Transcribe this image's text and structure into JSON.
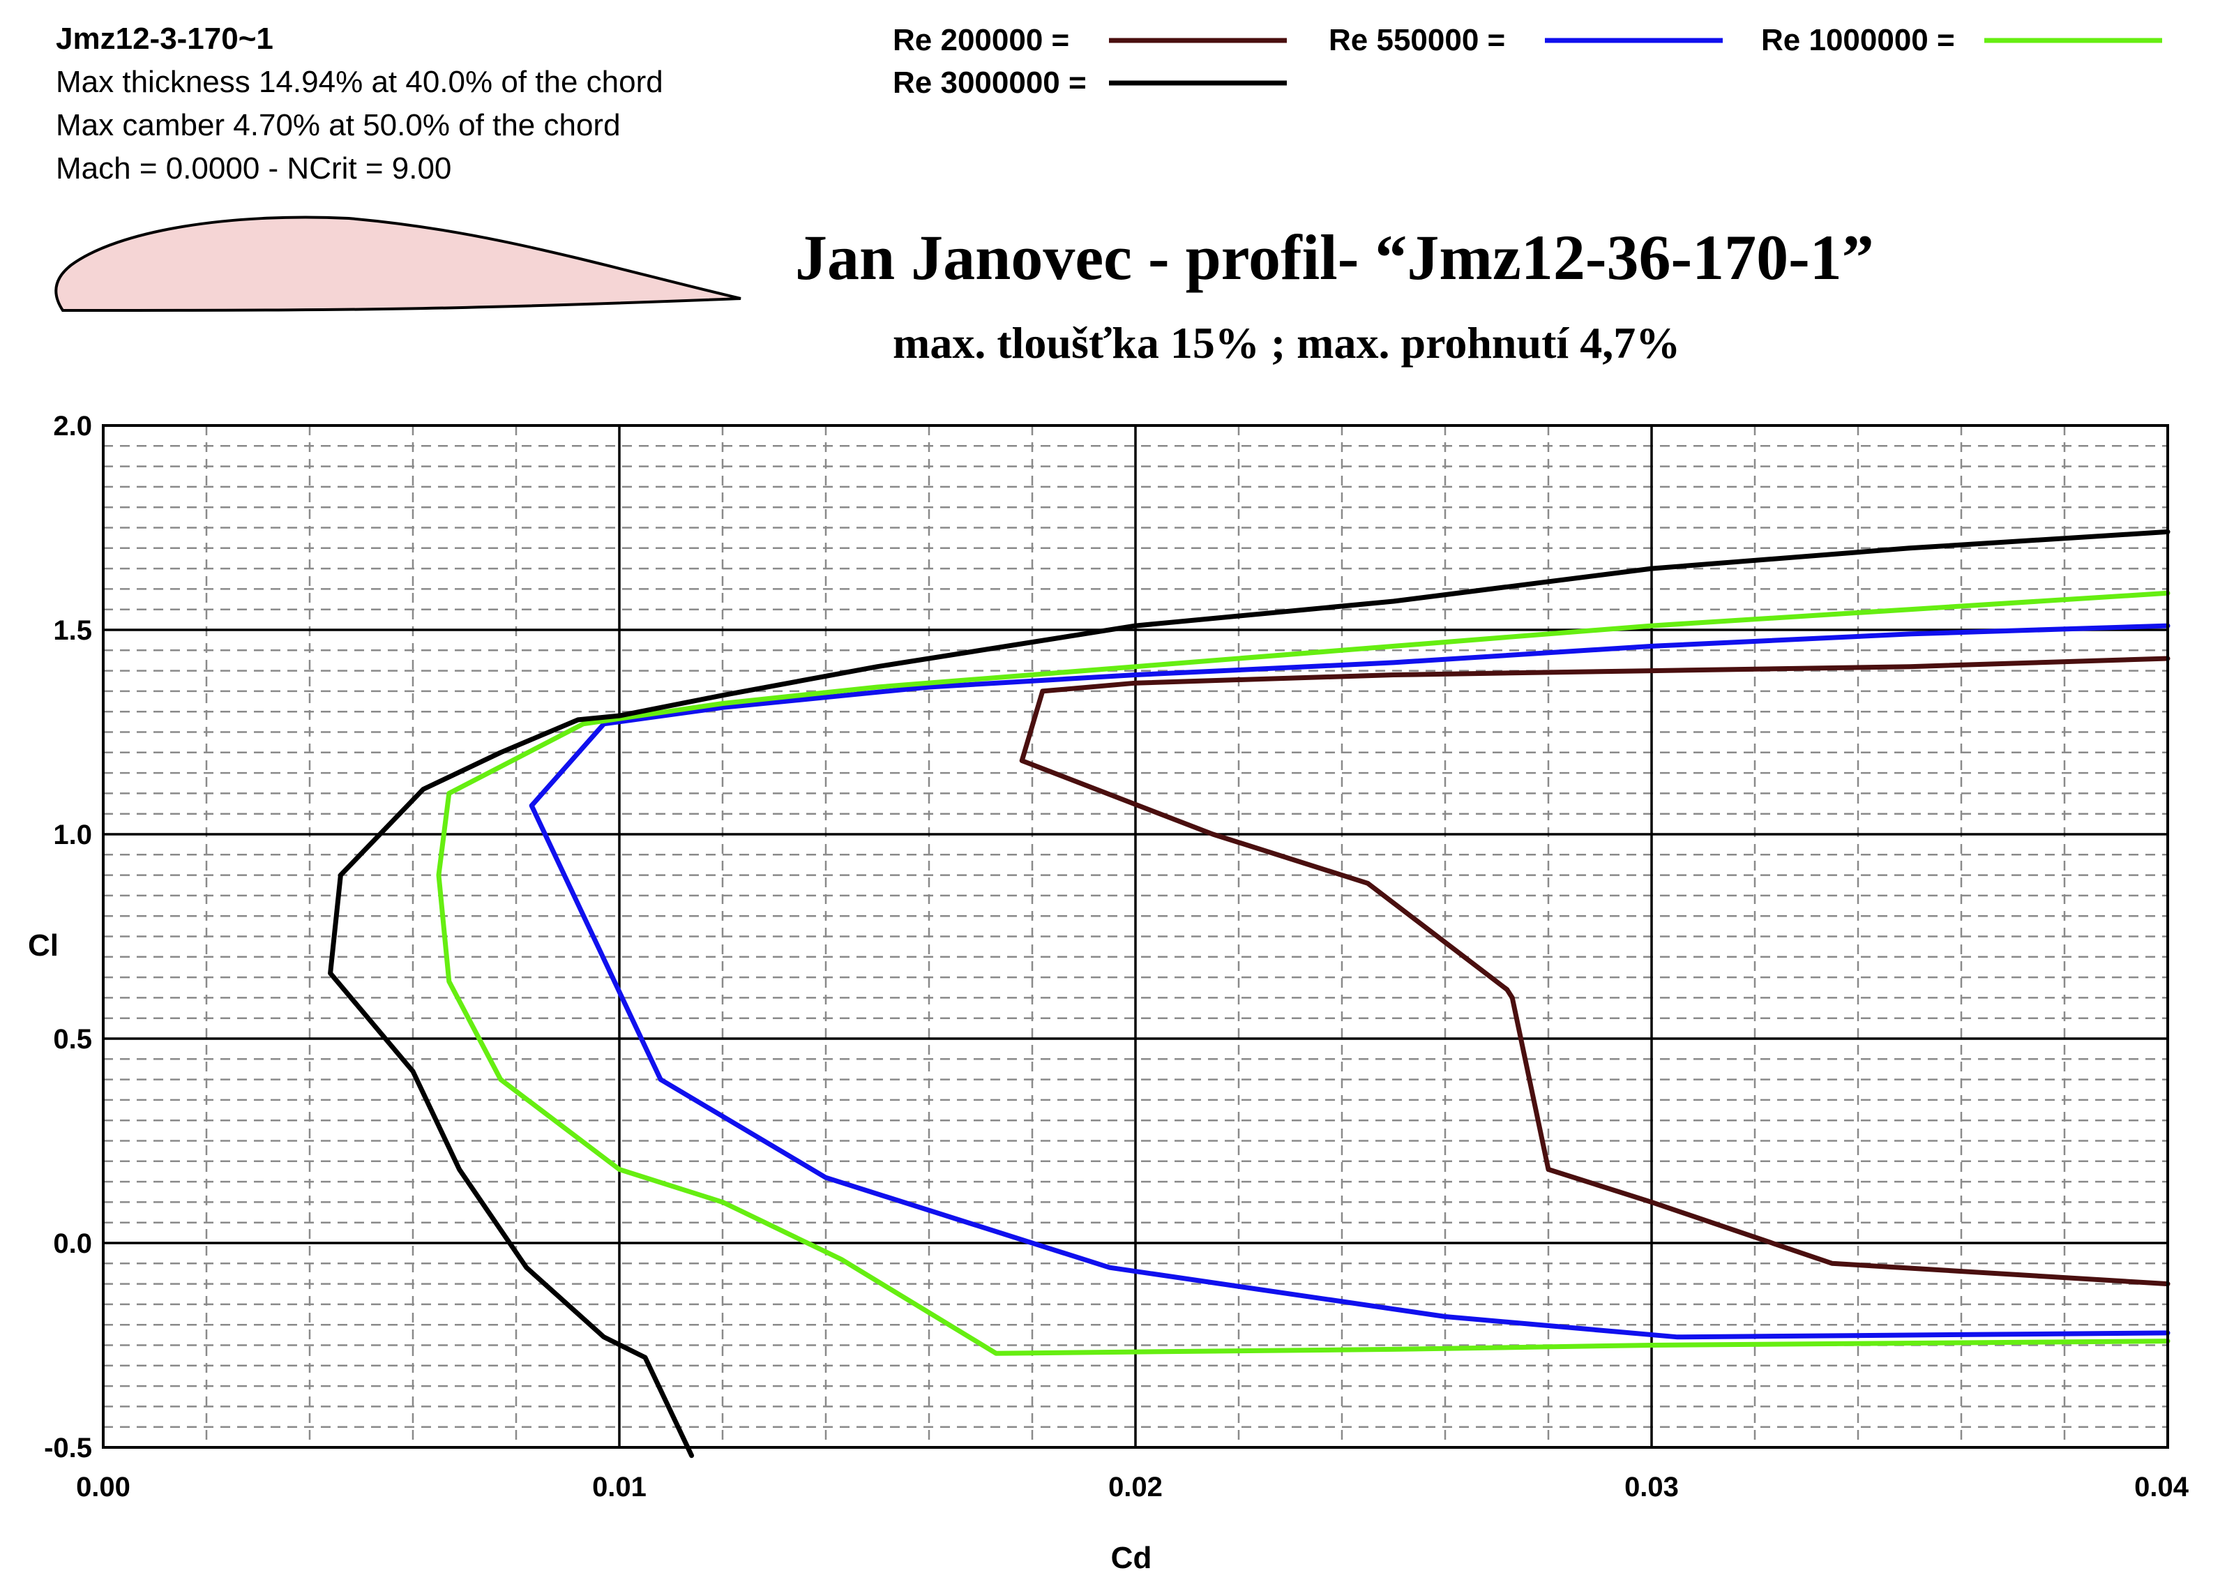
{
  "info": {
    "airfoil_name": "Jmz12-3-170~1",
    "line1": "Max thickness 14.94% at 40.0% of the chord",
    "line2": "Max camber 4.70% at 50.0% of the chord",
    "line3": "Mach = 0.0000 - NCrit = 9.00"
  },
  "title": "Jan  Janovec - profil- “Jmz12-36-170-1”",
  "subtitle": "max. tloušťka  15% ; max. prohnutí  4,7%",
  "airfoil_fill": "#f5d5d5",
  "chart_data": {
    "type": "line",
    "xlabel": "Cd",
    "ylabel": "Cl",
    "xlim": [
      0.0,
      0.04
    ],
    "ylim": [
      -0.5,
      2.0
    ],
    "x_ticks": [
      "0.00",
      "0.01",
      "0.02",
      "0.03",
      "0.04"
    ],
    "y_ticks": [
      "2.0",
      "1.5",
      "1.0",
      "0.5",
      "0.0",
      "-0.5"
    ],
    "grid": "major solid, minor dashed",
    "legend_position": "top",
    "series": [
      {
        "name": "Re 200000 =",
        "color": "#4a0f0f",
        "points": [
          [
            0.04,
            -0.1
          ],
          [
            0.0335,
            -0.05
          ],
          [
            0.03,
            0.1
          ],
          [
            0.028,
            0.18
          ],
          [
            0.0273,
            0.6
          ],
          [
            0.0272,
            0.62
          ],
          [
            0.0245,
            0.88
          ],
          [
            0.024,
            0.9
          ],
          [
            0.0215,
            1.0
          ],
          [
            0.0178,
            1.18
          ],
          [
            0.0182,
            1.35
          ],
          [
            0.02,
            1.37
          ],
          [
            0.025,
            1.39
          ],
          [
            0.03,
            1.4
          ],
          [
            0.035,
            1.41
          ],
          [
            0.04,
            1.43
          ]
        ]
      },
      {
        "name": "Re 550000 =",
        "color": "#1010ee",
        "points": [
          [
            0.04,
            -0.22
          ],
          [
            0.0305,
            -0.23
          ],
          [
            0.026,
            -0.18
          ],
          [
            0.0195,
            -0.06
          ],
          [
            0.014,
            0.16
          ],
          [
            0.0108,
            0.4
          ],
          [
            0.0083,
            1.07
          ],
          [
            0.0097,
            1.27
          ],
          [
            0.012,
            1.31
          ],
          [
            0.016,
            1.36
          ],
          [
            0.02,
            1.39
          ],
          [
            0.025,
            1.42
          ],
          [
            0.03,
            1.46
          ],
          [
            0.035,
            1.49
          ],
          [
            0.04,
            1.51
          ]
        ]
      },
      {
        "name": "Re 1000000 =",
        "color": "#66ee11",
        "points": [
          [
            0.04,
            -0.24
          ],
          [
            0.03,
            -0.25
          ],
          [
            0.025,
            -0.26
          ],
          [
            0.0173,
            -0.27
          ],
          [
            0.0143,
            -0.04
          ],
          [
            0.012,
            0.1
          ],
          [
            0.01,
            0.18
          ],
          [
            0.0077,
            0.4
          ],
          [
            0.0067,
            0.64
          ],
          [
            0.0065,
            0.9
          ],
          [
            0.0067,
            1.1
          ],
          [
            0.0093,
            1.27
          ],
          [
            0.012,
            1.32
          ],
          [
            0.015,
            1.36
          ],
          [
            0.02,
            1.41
          ],
          [
            0.025,
            1.46
          ],
          [
            0.03,
            1.51
          ],
          [
            0.035,
            1.55
          ],
          [
            0.04,
            1.59
          ]
        ]
      },
      {
        "name": "Re 3000000 =",
        "color": "#000000",
        "points": [
          [
            0.0114,
            -0.52
          ],
          [
            0.0105,
            -0.28
          ],
          [
            0.0097,
            -0.23
          ],
          [
            0.0082,
            -0.06
          ],
          [
            0.0069,
            0.18
          ],
          [
            0.006,
            0.42
          ],
          [
            0.0044,
            0.66
          ],
          [
            0.0046,
            0.9
          ],
          [
            0.0062,
            1.11
          ],
          [
            0.0077,
            1.2
          ],
          [
            0.0092,
            1.28
          ],
          [
            0.01,
            1.29
          ],
          [
            0.012,
            1.34
          ],
          [
            0.015,
            1.41
          ],
          [
            0.02,
            1.51
          ],
          [
            0.025,
            1.57
          ],
          [
            0.03,
            1.65
          ],
          [
            0.035,
            1.7
          ],
          [
            0.04,
            1.74
          ]
        ]
      }
    ]
  }
}
